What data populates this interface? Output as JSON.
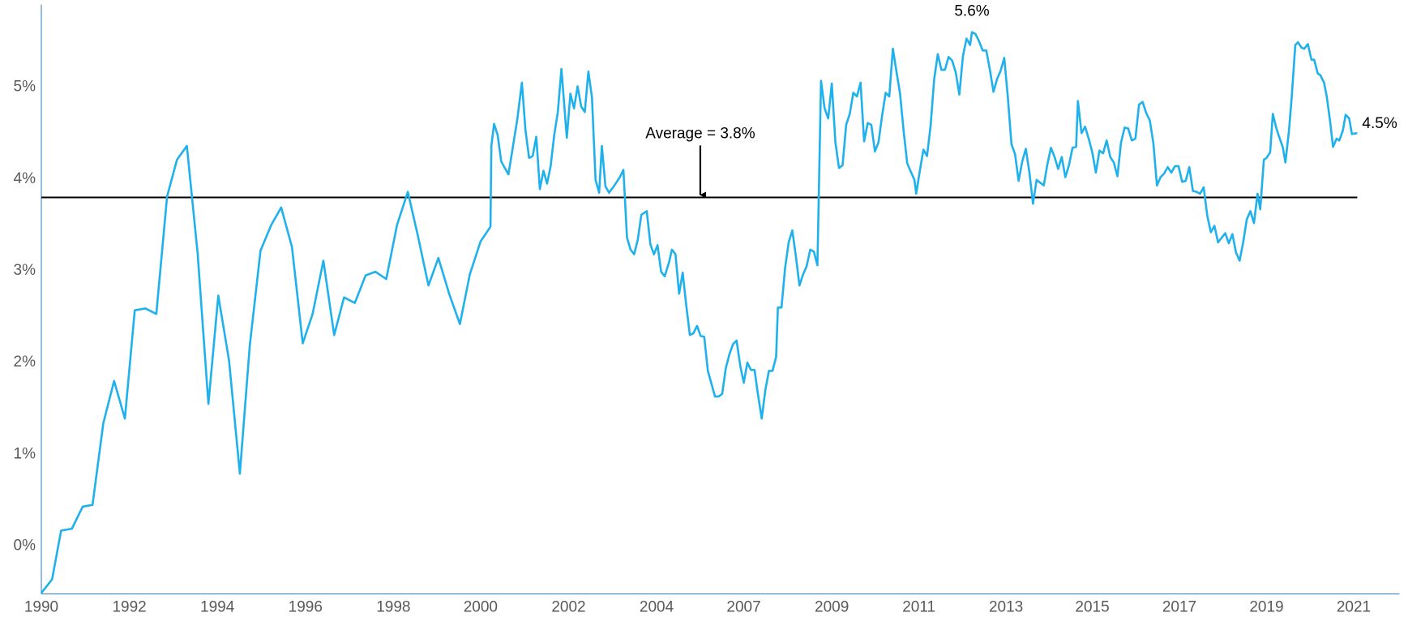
{
  "chart_data": {
    "type": "line",
    "color": "#1fb1ec",
    "x": [
      0,
      12,
      22,
      34,
      46,
      57,
      69,
      81,
      93,
      104,
      116,
      128,
      140,
      151,
      162,
      174,
      186,
      197,
      209,
      221,
      232,
      244,
      256,
      267,
      279,
      291,
      302,
      314,
      326,
      337,
      349,
      361,
      372,
      384,
      396,
      408,
      419,
      431,
      442,
      454,
      466,
      477,
      489,
      500,
      501,
      504,
      508,
      512,
      520,
      524,
      530,
      535,
      539,
      543,
      547,
      551,
      555,
      559,
      563,
      567,
      571,
      575,
      579,
      585,
      589,
      593,
      597,
      601,
      605,
      609,
      613,
      617,
      621,
      624,
      628,
      632,
      638,
      644,
      648,
      652,
      656,
      660,
      664,
      668,
      674,
      678,
      682,
      686,
      690,
      694,
      699,
      702,
      706,
      710,
      714,
      718,
      722,
      726,
      730,
      734,
      738,
      742,
      750,
      754,
      758,
      762,
      766,
      770,
      774,
      778,
      782,
      786,
      790,
      794,
      798,
      802,
      806,
      810,
      814,
      818,
      820,
      824,
      828,
      832,
      836,
      840,
      844,
      848,
      852,
      856,
      860,
      864,
      868,
      872,
      876,
      880,
      884,
      888,
      892,
      896,
      900,
      904,
      908,
      912,
      916,
      920,
      924,
      928,
      932,
      936,
      940,
      944,
      948,
      952,
      956,
      960,
      964,
      968,
      972,
      974,
      978,
      982,
      986,
      990,
      994,
      998,
      1002,
      1006,
      1010,
      1014,
      1018,
      1022,
      1026,
      1030,
      1034,
      1036,
      1040,
      1044,
      1048,
      1052,
      1056,
      1060,
      1064,
      1068,
      1072,
      1076,
      1080,
      1084,
      1088,
      1092,
      1096,
      1100,
      1104,
      1108,
      1112,
      1116,
      1120,
      1124,
      1128,
      1132,
      1136,
      1140,
      1144,
      1148,
      1152,
      1154,
      1158,
      1162,
      1166,
      1170,
      1174,
      1178,
      1182,
      1186,
      1190,
      1194,
      1198,
      1202,
      1206,
      1210,
      1214,
      1218,
      1222,
      1226,
      1230,
      1234,
      1238,
      1242,
      1246,
      1250,
      1254,
      1258,
      1262,
      1266,
      1270,
      1274,
      1278,
      1282,
      1286,
      1290,
      1294,
      1298,
      1302,
      1306,
      1310,
      1314,
      1318,
      1322,
      1326,
      1330,
      1334,
      1338,
      1342,
      1346,
      1350,
      1354,
      1357,
      1361,
      1364,
      1368,
      1371,
      1375,
      1378,
      1382,
      1385,
      1389,
      1392,
      1396,
      1399,
      1403,
      1406,
      1410,
      1414,
      1417,
      1421,
      1424,
      1428,
      1431,
      1435,
      1438,
      1442,
      1445,
      1449,
      1452,
      1456,
      1459,
      1465
    ],
    "values": [
      -0.51,
      -0.36,
      0.17,
      0.19,
      0.43,
      0.45,
      1.34,
      1.8,
      1.39,
      2.57,
      2.59,
      2.53,
      3.81,
      4.21,
      4.36,
      3.19,
      1.55,
      2.73,
      2.02,
      0.79,
      2.18,
      3.22,
      3.5,
      3.69,
      3.26,
      2.21,
      2.53,
      3.11,
      2.3,
      2.71,
      2.65,
      2.95,
      2.99,
      2.91,
      3.5,
      3.86,
      3.39,
      2.84,
      3.14,
      2.75,
      2.42,
      2.96,
      3.32,
      3.48,
      4.36,
      4.6,
      4.48,
      4.19,
      4.05,
      4.29,
      4.66,
      5.05,
      4.53,
      4.23,
      4.25,
      4.46,
      3.89,
      4.09,
      3.95,
      4.14,
      4.48,
      4.73,
      5.2,
      4.45,
      4.93,
      4.77,
      5.01,
      4.79,
      4.73,
      5.17,
      4.89,
      3.99,
      3.85,
      4.36,
      3.92,
      3.85,
      3.93,
      4.02,
      4.1,
      3.36,
      3.23,
      3.18,
      3.34,
      3.61,
      3.65,
      3.29,
      3.18,
      3.28,
      2.99,
      2.94,
      3.1,
      3.23,
      3.18,
      2.75,
      2.98,
      2.62,
      2.3,
      2.32,
      2.4,
      2.29,
      2.28,
      1.91,
      1.63,
      1.63,
      1.66,
      1.94,
      2.09,
      2.2,
      2.24,
      1.97,
      1.78,
      2.0,
      1.92,
      1.92,
      1.64,
      1.39,
      1.7,
      1.91,
      1.91,
      2.06,
      2.6,
      2.6,
      3.03,
      3.31,
      3.44,
      3.16,
      2.84,
      2.96,
      3.05,
      3.23,
      3.21,
      3.06,
      5.07,
      4.77,
      4.66,
      5.04,
      4.4,
      4.12,
      4.15,
      4.59,
      4.71,
      4.94,
      4.9,
      5.05,
      4.41,
      4.61,
      4.59,
      4.3,
      4.4,
      4.69,
      4.94,
      4.9,
      5.42,
      5.17,
      4.93,
      4.52,
      4.17,
      4.08,
      3.99,
      3.84,
      4.09,
      4.32,
      4.25,
      4.58,
      5.09,
      5.36,
      5.19,
      5.19,
      5.33,
      5.29,
      5.16,
      4.92,
      5.34,
      5.53,
      5.46,
      5.6,
      5.58,
      5.5,
      5.4,
      5.4,
      5.19,
      4.95,
      5.09,
      5.18,
      5.32,
      4.89,
      4.38,
      4.27,
      3.98,
      4.19,
      4.33,
      4.07,
      3.73,
      3.99,
      3.96,
      3.93,
      4.16,
      4.34,
      4.24,
      4.11,
      4.24,
      4.02,
      4.15,
      4.34,
      4.35,
      4.85,
      4.5,
      4.57,
      4.44,
      4.29,
      4.07,
      4.31,
      4.28,
      4.42,
      4.24,
      4.18,
      4.03,
      4.4,
      4.56,
      4.55,
      4.42,
      4.44,
      4.81,
      4.84,
      4.72,
      4.64,
      4.39,
      3.93,
      4.02,
      4.06,
      4.13,
      4.07,
      4.14,
      4.14,
      3.97,
      3.98,
      4.13,
      3.87,
      3.86,
      3.84,
      3.91,
      3.6,
      3.42,
      3.49,
      3.31,
      3.36,
      3.41,
      3.3,
      3.4,
      3.2,
      3.11,
      3.31,
      3.56,
      3.65,
      3.52,
      3.84,
      3.67,
      4.21,
      4.23,
      4.29,
      4.71,
      4.55,
      4.46,
      4.35,
      4.18,
      4.53,
      4.89,
      5.46,
      5.49,
      5.43,
      5.42,
      5.47,
      5.3,
      5.3,
      5.15,
      5.13,
      5.05,
      4.9,
      4.61,
      4.35,
      4.44,
      4.42,
      4.53,
      4.7,
      4.66,
      4.49,
      4.5
    ],
    "xlim": [
      0,
      1512
    ],
    "xticks": [
      {
        "value": 0,
        "label": "1990"
      },
      {
        "value": 98,
        "label": "1992"
      },
      {
        "value": 196,
        "label": "1994"
      },
      {
        "value": 294,
        "label": "1996"
      },
      {
        "value": 392,
        "label": "1998"
      },
      {
        "value": 489,
        "label": "2000"
      },
      {
        "value": 587,
        "label": "2002"
      },
      {
        "value": 685,
        "label": "2004"
      },
      {
        "value": 782,
        "label": "2007"
      },
      {
        "value": 880,
        "label": "2009"
      },
      {
        "value": 977,
        "label": "2011"
      },
      {
        "value": 1074,
        "label": "2013"
      },
      {
        "value": 1170,
        "label": "2015"
      },
      {
        "value": 1267,
        "label": "2017"
      },
      {
        "value": 1364,
        "label": "2019"
      },
      {
        "value": 1461,
        "label": "2021"
      }
    ],
    "ylim": [
      -0.52,
      5.9
    ],
    "yticks": [
      {
        "value": 0,
        "label": "0%"
      },
      {
        "value": 1,
        "label": "1%"
      },
      {
        "value": 2,
        "label": "2%"
      },
      {
        "value": 3,
        "label": "3%"
      },
      {
        "value": 4,
        "label": "4%"
      },
      {
        "value": 5,
        "label": "5%"
      }
    ],
    "average": {
      "value": 3.8,
      "label": "Average = 3.8%"
    },
    "annotations": [
      {
        "x": 1036,
        "value": 5.6,
        "label": "5.6%"
      },
      {
        "x": 1465,
        "value": 4.5,
        "label": "4.5%"
      }
    ]
  }
}
